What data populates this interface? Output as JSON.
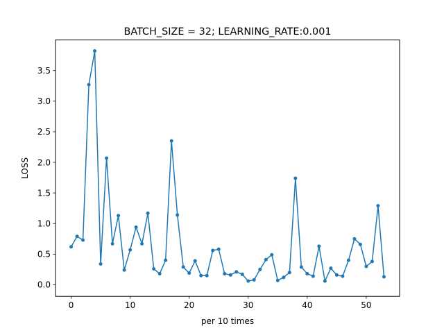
{
  "chart_data": {
    "type": "line",
    "title": "BATCH_SIZE = 32; LEARNING_RATE:0.001",
    "xlabel": "per 10 times",
    "ylabel": "LOSS",
    "xlim": [
      -2.65,
      55.65
    ],
    "ylim": [
      -0.19,
      4.0
    ],
    "xticks": [
      0,
      10,
      20,
      30,
      40,
      50
    ],
    "yticks": [
      0.0,
      0.5,
      1.0,
      1.5,
      2.0,
      2.5,
      3.0,
      3.5
    ],
    "ytick_labels": [
      "0.0",
      "0.5",
      "1.0",
      "1.5",
      "2.0",
      "2.5",
      "3.0",
      "3.5"
    ],
    "grid": false,
    "series": [
      {
        "color": "#1f77b4",
        "marker": "circle",
        "x": [
          0,
          1,
          2,
          3,
          4,
          5,
          6,
          7,
          8,
          9,
          10,
          11,
          12,
          13,
          14,
          15,
          16,
          17,
          18,
          19,
          20,
          21,
          22,
          23,
          24,
          25,
          26,
          27,
          28,
          29,
          30,
          31,
          32,
          33,
          34,
          35,
          36,
          37,
          38,
          39,
          40,
          41,
          42,
          43,
          44,
          45,
          46,
          47,
          48,
          49,
          50,
          51,
          52,
          53
        ],
        "y": [
          0.62,
          0.79,
          0.73,
          3.27,
          3.82,
          0.34,
          2.07,
          0.67,
          1.13,
          0.24,
          0.57,
          0.94,
          0.67,
          1.17,
          0.26,
          0.18,
          0.4,
          2.35,
          1.14,
          0.29,
          0.19,
          0.39,
          0.15,
          0.15,
          0.56,
          0.58,
          0.18,
          0.16,
          0.21,
          0.17,
          0.06,
          0.08,
          0.25,
          0.41,
          0.49,
          0.07,
          0.12,
          0.2,
          1.74,
          0.29,
          0.18,
          0.14,
          0.63,
          0.06,
          0.27,
          0.16,
          0.14,
          0.4,
          0.75,
          0.66,
          0.3,
          0.38,
          1.29,
          0.13
        ]
      }
    ]
  }
}
